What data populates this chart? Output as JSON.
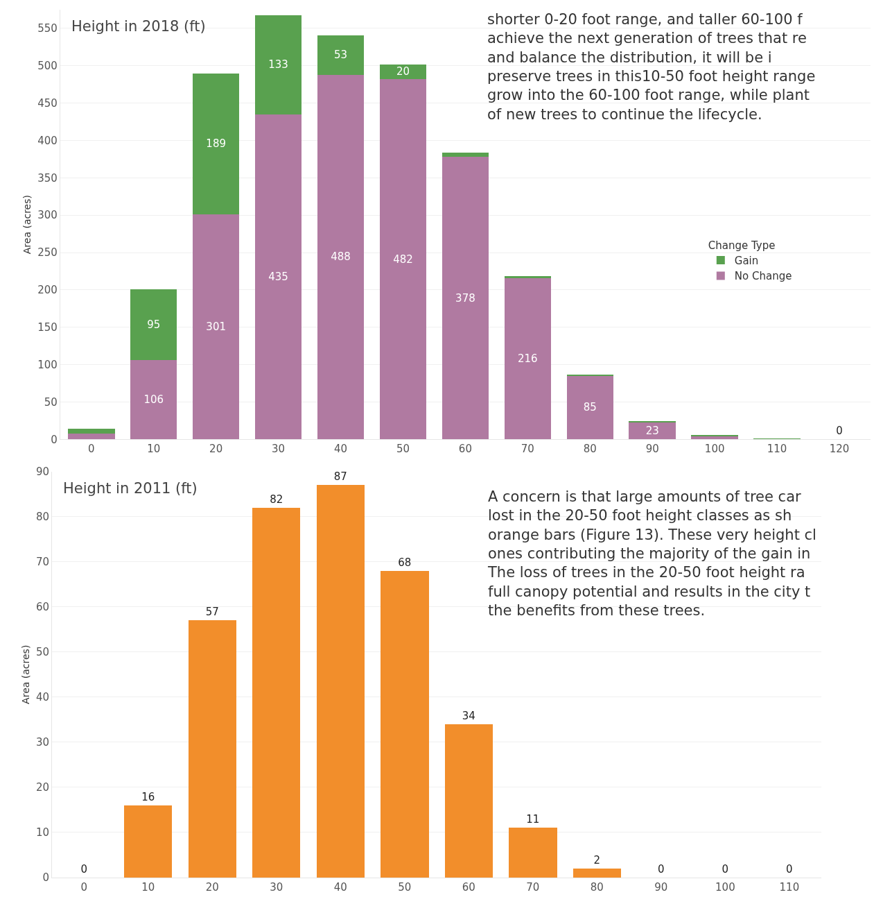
{
  "chart_data": [
    {
      "type": "bar",
      "title": "Height in 2018 (ft)",
      "ylabel": "Area (acres)",
      "legend_title": "Change Type",
      "stacked": true,
      "legend": "right",
      "grid": "y",
      "categories": [
        "0",
        "10",
        "20",
        "30",
        "40",
        "50",
        "60",
        "70",
        "80",
        "90",
        "100",
        "110",
        "120"
      ],
      "ylim": [
        0,
        575
      ],
      "yticks": [
        0,
        50,
        100,
        150,
        200,
        250,
        300,
        350,
        400,
        450,
        500,
        550
      ],
      "series": [
        {
          "name": "No Change",
          "color": "#b07aa1",
          "values": [
            8,
            106,
            301,
            435,
            488,
            482,
            378,
            216,
            85,
            23,
            4,
            0,
            0
          ],
          "value_labels": [
            null,
            "106",
            "301",
            "435",
            "488",
            "482",
            "378",
            "216",
            "85",
            "23",
            null,
            null,
            "0"
          ]
        },
        {
          "name": "Gain",
          "color": "#59a14f",
          "values": [
            6,
            95,
            189,
            133,
            53,
            20,
            6,
            2,
            1,
            1,
            1,
            1,
            0
          ],
          "value_labels": [
            null,
            "95",
            "189",
            "133",
            "53",
            "20",
            null,
            null,
            null,
            null,
            null,
            null,
            null
          ]
        }
      ],
      "annotations": [
        "shorter 0-20 foot range, and taller 60-100 f\nachieve the next generation of trees that re\nand balance the distribution, it will be i\npreserve trees in this10-50 foot height range\ngrow into the 60-100 foot range, while plant\nof new trees to continue the lifecycle."
      ]
    },
    {
      "type": "bar",
      "title": "Height in 2011 (ft)",
      "ylabel": "Area (acres)",
      "grid": "y",
      "data_labels": true,
      "categories": [
        "0",
        "10",
        "20",
        "30",
        "40",
        "50",
        "60",
        "70",
        "80",
        "90",
        "100",
        "110"
      ],
      "ylim": [
        0,
        90
      ],
      "yticks": [
        0,
        10,
        20,
        30,
        40,
        50,
        60,
        70,
        80,
        90
      ],
      "series": [
        {
          "color": "#f28e2b",
          "values": [
            0,
            16,
            57,
            82,
            87,
            68,
            34,
            11,
            2,
            0,
            0,
            0
          ]
        }
      ],
      "annotations": [
        "A concern is that large amounts of tree car\nlost in the 20-50 foot height classes as sh\norange bars (Figure 13). These very height cl\nones contributing the majority of the gain in\nThe loss of trees in the 20-50 foot height ra\nfull canopy potential and results in the city t\nthe benefits from these trees."
      ]
    }
  ]
}
